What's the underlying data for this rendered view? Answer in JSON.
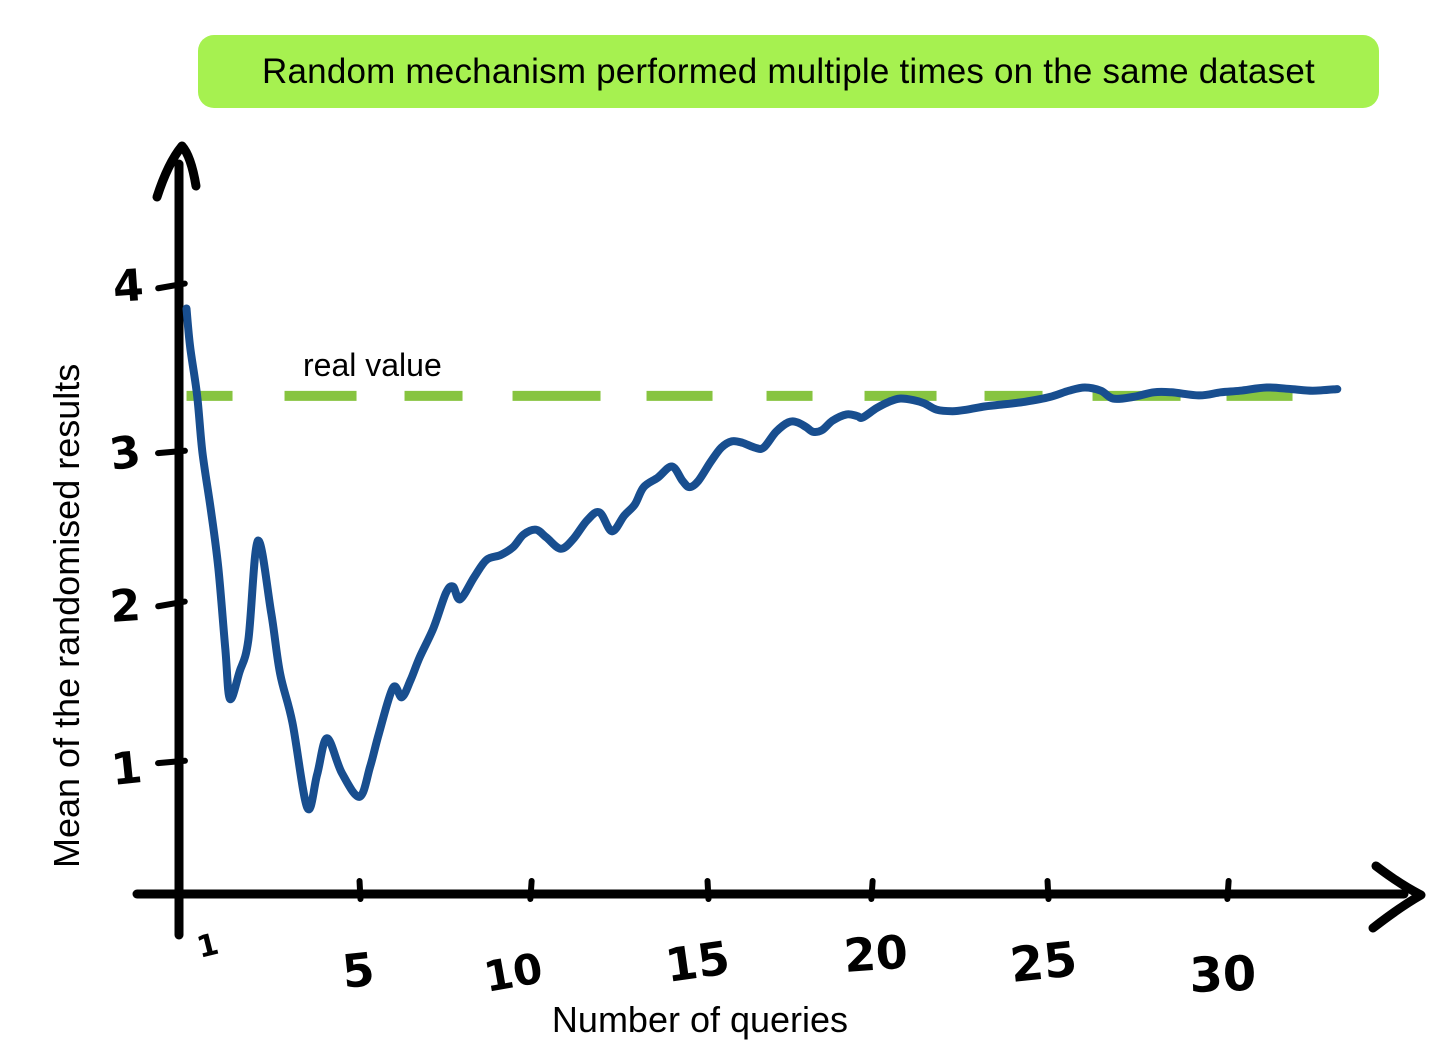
{
  "page": {
    "background": "#ffffff"
  },
  "title_banner": {
    "text": "Random mechanism performed multiple times on the same dataset"
  },
  "colors": {
    "curve": "#184e8f",
    "dashed_line": "#87c440",
    "axis": "#000000",
    "title_bg": "#a6f150",
    "text": "#000000"
  },
  "chart_data": {
    "type": "line",
    "title": "Random mechanism performed multiple times on the same dataset",
    "xlabel": "Number of queries",
    "ylabel": "Mean of the randomised results",
    "x_tick_labels": [
      "1",
      "5",
      "10",
      "15",
      "20",
      "25",
      "30"
    ],
    "y_tick_labels": [
      "1",
      "2",
      "3",
      "4"
    ],
    "x_tick_values": [
      1,
      5,
      10,
      15,
      20,
      25,
      30
    ],
    "y_tick_values": [
      1,
      2,
      3,
      4
    ],
    "xlim": [
      0,
      34.5
    ],
    "ylim": [
      0,
      4.7
    ],
    "grid": false,
    "legend": "none",
    "real_value": 3.33,
    "annotations": [
      {
        "text": "real value",
        "x": 3.6,
        "y": 3.55
      }
    ],
    "series": [
      {
        "name": "mean-of-randomised-results",
        "style": "solid",
        "color": "#184e8f",
        "points": [
          [
            0.1,
            3.87
          ],
          [
            0.2,
            3.63
          ],
          [
            0.4,
            3.32
          ],
          [
            0.55,
            2.96
          ],
          [
            0.8,
            2.58
          ],
          [
            1.0,
            2.23
          ],
          [
            1.2,
            1.71
          ],
          [
            1.33,
            1.4
          ],
          [
            1.6,
            1.57
          ],
          [
            1.85,
            1.77
          ],
          [
            2.12,
            2.4
          ],
          [
            2.5,
            1.94
          ],
          [
            2.75,
            1.56
          ],
          [
            3.1,
            1.25
          ],
          [
            3.52,
            0.71
          ],
          [
            3.8,
            0.92
          ],
          [
            4.08,
            1.15
          ],
          [
            4.5,
            0.93
          ],
          [
            5.0,
            0.78
          ],
          [
            5.3,
            0.97
          ],
          [
            5.55,
            1.18
          ],
          [
            5.95,
            1.47
          ],
          [
            6.2,
            1.41
          ],
          [
            6.45,
            1.52
          ],
          [
            6.7,
            1.66
          ],
          [
            7.1,
            1.85
          ],
          [
            7.45,
            2.07
          ],
          [
            7.65,
            2.11
          ],
          [
            7.85,
            2.03
          ],
          [
            8.25,
            2.17
          ],
          [
            8.6,
            2.28
          ],
          [
            9.0,
            2.31
          ],
          [
            9.35,
            2.36
          ],
          [
            9.65,
            2.44
          ],
          [
            10.0,
            2.47
          ],
          [
            10.3,
            2.42
          ],
          [
            10.7,
            2.35
          ],
          [
            11.05,
            2.41
          ],
          [
            11.45,
            2.53
          ],
          [
            11.8,
            2.58
          ],
          [
            12.15,
            2.46
          ],
          [
            12.5,
            2.56
          ],
          [
            12.8,
            2.63
          ],
          [
            13.05,
            2.74
          ],
          [
            13.45,
            2.8
          ],
          [
            13.85,
            2.87
          ],
          [
            14.15,
            2.78
          ],
          [
            14.35,
            2.74
          ],
          [
            14.6,
            2.78
          ],
          [
            14.95,
            2.9
          ],
          [
            15.25,
            2.99
          ],
          [
            15.55,
            3.03
          ],
          [
            15.85,
            3.02
          ],
          [
            16.2,
            2.99
          ],
          [
            16.45,
            2.99
          ],
          [
            16.8,
            3.09
          ],
          [
            17.15,
            3.15
          ],
          [
            17.4,
            3.15
          ],
          [
            17.65,
            3.12
          ],
          [
            17.85,
            3.09
          ],
          [
            18.1,
            3.1
          ],
          [
            18.4,
            3.16
          ],
          [
            18.8,
            3.2
          ],
          [
            19.1,
            3.19
          ],
          [
            19.25,
            3.18
          ],
          [
            19.65,
            3.24
          ],
          [
            20.0,
            3.28
          ],
          [
            20.3,
            3.3
          ],
          [
            20.7,
            3.29
          ],
          [
            21.0,
            3.27
          ],
          [
            21.35,
            3.23
          ],
          [
            21.8,
            3.22
          ],
          [
            22.2,
            3.23
          ],
          [
            22.7,
            3.25
          ],
          [
            23.1,
            3.26
          ],
          [
            23.85,
            3.28
          ],
          [
            24.55,
            3.31
          ],
          [
            25.1,
            3.35
          ],
          [
            25.55,
            3.37
          ],
          [
            26.0,
            3.35
          ],
          [
            26.35,
            3.3
          ],
          [
            26.9,
            3.31
          ],
          [
            27.5,
            3.34
          ],
          [
            28.0,
            3.34
          ],
          [
            28.8,
            3.32
          ],
          [
            29.4,
            3.34
          ],
          [
            29.95,
            3.35
          ],
          [
            30.7,
            3.37
          ],
          [
            31.4,
            3.36
          ],
          [
            32.0,
            3.35
          ],
          [
            32.7,
            3.36
          ]
        ]
      },
      {
        "name": "real-value",
        "style": "dashed",
        "color": "#87c440",
        "points": [
          [
            0.1,
            3.33
          ],
          [
            32.7,
            3.33
          ]
        ]
      }
    ]
  }
}
